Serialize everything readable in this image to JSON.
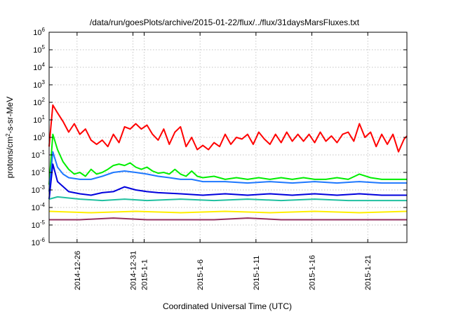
{
  "chart_data": {
    "type": "line",
    "title": "/data/run/goesPlots/archive/2015-01-22/flux/../flux/31daysMarsFluxes.txt",
    "xlabel": "Coordinated Universal Time (UTC)",
    "ylabel": {
      "pre": "protons/cm",
      "sup": "2",
      "post": "-s-sr-MeV"
    },
    "y_scale": "log",
    "ylim": [
      1e-06,
      1000000.0
    ],
    "y_ticks": [
      {
        "value": 1e-06,
        "base": "10",
        "exp": "-6"
      },
      {
        "value": 1e-05,
        "base": "10",
        "exp": "-5"
      },
      {
        "value": 0.0001,
        "base": "10",
        "exp": "-4"
      },
      {
        "value": 0.001,
        "base": "10",
        "exp": "-3"
      },
      {
        "value": 0.01,
        "base": "10",
        "exp": "-2"
      },
      {
        "value": 0.1,
        "base": "10",
        "exp": "-1"
      },
      {
        "value": 1,
        "base": "10",
        "exp": "0"
      },
      {
        "value": 10,
        "base": "10",
        "exp": "1"
      },
      {
        "value": 100,
        "base": "10",
        "exp": "2"
      },
      {
        "value": 1000,
        "base": "10",
        "exp": "3"
      },
      {
        "value": 10000,
        "base": "10",
        "exp": "4"
      },
      {
        "value": 100000,
        "base": "10",
        "exp": "5"
      },
      {
        "value": 1000000,
        "base": "10",
        "exp": "6"
      }
    ],
    "xlim": [
      "2014-12-23T12:00",
      "2015-01-24T12:00"
    ],
    "x_ticks": [
      {
        "value": "2014-12-26T00:00",
        "label": "2014-12-26"
      },
      {
        "value": "2014-12-31T00:00",
        "label": "2014-12-31"
      },
      {
        "value": "2015-01-01T00:00",
        "label": "2015-1-1"
      },
      {
        "value": "2015-01-06T00:00",
        "label": "2015-1-6"
      },
      {
        "value": "2015-01-11T00:00",
        "label": "2015-1-11"
      },
      {
        "value": "2015-01-16T00:00",
        "label": "2015-1-16"
      },
      {
        "value": "2015-01-21T00:00",
        "label": "2015-1-21"
      }
    ],
    "grid": true,
    "series": [
      {
        "color": "#ff0000",
        "points": [
          [
            "2014-12-23T12:00",
            0.3
          ],
          [
            "2014-12-23T20:00",
            70
          ],
          [
            "2014-12-24T06:00",
            25
          ],
          [
            "2014-12-24T18:00",
            8
          ],
          [
            "2014-12-25T06:00",
            2
          ],
          [
            "2014-12-25T18:00",
            6
          ],
          [
            "2014-12-26T06:00",
            1.5
          ],
          [
            "2014-12-26T18:00",
            3
          ],
          [
            "2014-12-27T06:00",
            0.7
          ],
          [
            "2014-12-27T18:00",
            0.4
          ],
          [
            "2014-12-28T06:00",
            0.7
          ],
          [
            "2014-12-28T18:00",
            0.3
          ],
          [
            "2014-12-29T06:00",
            1.5
          ],
          [
            "2014-12-29T18:00",
            0.5
          ],
          [
            "2014-12-30T06:00",
            4
          ],
          [
            "2014-12-30T18:00",
            3
          ],
          [
            "2014-12-31T06:00",
            6
          ],
          [
            "2014-12-31T18:00",
            3
          ],
          [
            "2015-01-01T06:00",
            5
          ],
          [
            "2015-01-01T18:00",
            1.5
          ],
          [
            "2015-01-02T06:00",
            0.7
          ],
          [
            "2015-01-02T18:00",
            3
          ],
          [
            "2015-01-03T06:00",
            0.4
          ],
          [
            "2015-01-03T18:00",
            2
          ],
          [
            "2015-01-04T06:00",
            4
          ],
          [
            "2015-01-04T18:00",
            0.3
          ],
          [
            "2015-01-05T06:00",
            1
          ],
          [
            "2015-01-05T18:00",
            0.2
          ],
          [
            "2015-01-06T06:00",
            0.35
          ],
          [
            "2015-01-06T18:00",
            0.2
          ],
          [
            "2015-01-07T06:00",
            0.5
          ],
          [
            "2015-01-07T18:00",
            0.3
          ],
          [
            "2015-01-08T06:00",
            1.5
          ],
          [
            "2015-01-08T18:00",
            0.4
          ],
          [
            "2015-01-09T06:00",
            1
          ],
          [
            "2015-01-09T18:00",
            0.8
          ],
          [
            "2015-01-10T06:00",
            1.5
          ],
          [
            "2015-01-10T18:00",
            0.4
          ],
          [
            "2015-01-11T06:00",
            2
          ],
          [
            "2015-01-11T18:00",
            0.8
          ],
          [
            "2015-01-12T06:00",
            0.4
          ],
          [
            "2015-01-12T18:00",
            1.5
          ],
          [
            "2015-01-13T06:00",
            0.5
          ],
          [
            "2015-01-13T18:00",
            2
          ],
          [
            "2015-01-14T06:00",
            0.6
          ],
          [
            "2015-01-14T18:00",
            1.5
          ],
          [
            "2015-01-15T06:00",
            0.6
          ],
          [
            "2015-01-15T18:00",
            1.5
          ],
          [
            "2015-01-16T06:00",
            0.5
          ],
          [
            "2015-01-16T18:00",
            2
          ],
          [
            "2015-01-17T06:00",
            0.6
          ],
          [
            "2015-01-17T18:00",
            1.2
          ],
          [
            "2015-01-18T06:00",
            0.5
          ],
          [
            "2015-01-18T18:00",
            1.5
          ],
          [
            "2015-01-19T06:00",
            2
          ],
          [
            "2015-01-19T18:00",
            0.6
          ],
          [
            "2015-01-20T06:00",
            6
          ],
          [
            "2015-01-20T18:00",
            1
          ],
          [
            "2015-01-21T06:00",
            2
          ],
          [
            "2015-01-21T18:00",
            0.3
          ],
          [
            "2015-01-22T06:00",
            1.5
          ],
          [
            "2015-01-22T18:00",
            0.4
          ],
          [
            "2015-01-23T06:00",
            1.5
          ],
          [
            "2015-01-23T18:00",
            0.15
          ],
          [
            "2015-01-24T06:00",
            0.8
          ],
          [
            "2015-01-24T12:00",
            1.2
          ]
        ]
      },
      {
        "color": "#00ee00",
        "points": [
          [
            "2014-12-23T12:00",
            0.002
          ],
          [
            "2014-12-23T20:00",
            1.5
          ],
          [
            "2014-12-24T06:00",
            0.2
          ],
          [
            "2014-12-24T18:00",
            0.04
          ],
          [
            "2014-12-25T06:00",
            0.015
          ],
          [
            "2014-12-25T18:00",
            0.008
          ],
          [
            "2014-12-26T06:00",
            0.01
          ],
          [
            "2014-12-26T18:00",
            0.006
          ],
          [
            "2014-12-27T06:00",
            0.015
          ],
          [
            "2014-12-27T18:00",
            0.008
          ],
          [
            "2014-12-28T06:00",
            0.01
          ],
          [
            "2014-12-28T18:00",
            0.015
          ],
          [
            "2014-12-29T06:00",
            0.025
          ],
          [
            "2014-12-29T18:00",
            0.03
          ],
          [
            "2014-12-30T06:00",
            0.025
          ],
          [
            "2014-12-30T18:00",
            0.035
          ],
          [
            "2014-12-31T06:00",
            0.02
          ],
          [
            "2014-12-31T18:00",
            0.015
          ],
          [
            "2015-01-01T06:00",
            0.02
          ],
          [
            "2015-01-01T18:00",
            0.012
          ],
          [
            "2015-01-02T06:00",
            0.009
          ],
          [
            "2015-01-02T18:00",
            0.01
          ],
          [
            "2015-01-03T06:00",
            0.008
          ],
          [
            "2015-01-03T18:00",
            0.015
          ],
          [
            "2015-01-04T06:00",
            0.008
          ],
          [
            "2015-01-04T18:00",
            0.006
          ],
          [
            "2015-01-05T06:00",
            0.012
          ],
          [
            "2015-01-05T18:00",
            0.006
          ],
          [
            "2015-01-06T06:00",
            0.005
          ],
          [
            "2015-01-07T06:00",
            0.006
          ],
          [
            "2015-01-08T06:00",
            0.004
          ],
          [
            "2015-01-09T06:00",
            0.005
          ],
          [
            "2015-01-10T06:00",
            0.004
          ],
          [
            "2015-01-11T06:00",
            0.005
          ],
          [
            "2015-01-12T06:00",
            0.004
          ],
          [
            "2015-01-13T06:00",
            0.005
          ],
          [
            "2015-01-14T06:00",
            0.004
          ],
          [
            "2015-01-15T06:00",
            0.005
          ],
          [
            "2015-01-16T06:00",
            0.004
          ],
          [
            "2015-01-17T06:00",
            0.004
          ],
          [
            "2015-01-18T06:00",
            0.005
          ],
          [
            "2015-01-19T06:00",
            0.004
          ],
          [
            "2015-01-20T06:00",
            0.008
          ],
          [
            "2015-01-21T06:00",
            0.005
          ],
          [
            "2015-01-22T06:00",
            0.004
          ],
          [
            "2015-01-23T06:00",
            0.004
          ],
          [
            "2015-01-24T12:00",
            0.004
          ]
        ]
      },
      {
        "color": "#1e78ff",
        "points": [
          [
            "2014-12-23T12:00",
            0.0008
          ],
          [
            "2014-12-23T20:00",
            0.15
          ],
          [
            "2014-12-24T06:00",
            0.02
          ],
          [
            "2014-12-24T18:00",
            0.008
          ],
          [
            "2014-12-25T06:00",
            0.005
          ],
          [
            "2014-12-26T06:00",
            0.004
          ],
          [
            "2014-12-27T06:00",
            0.004
          ],
          [
            "2014-12-28T06:00",
            0.006
          ],
          [
            "2014-12-29T06:00",
            0.01
          ],
          [
            "2014-12-30T06:00",
            0.012
          ],
          [
            "2014-12-31T06:00",
            0.01
          ],
          [
            "2015-01-01T06:00",
            0.008
          ],
          [
            "2015-01-02T06:00",
            0.006
          ],
          [
            "2015-01-03T06:00",
            0.005
          ],
          [
            "2015-01-04T06:00",
            0.004
          ],
          [
            "2015-01-05T06:00",
            0.004
          ],
          [
            "2015-01-06T06:00",
            0.003
          ],
          [
            "2015-01-08T06:00",
            0.003
          ],
          [
            "2015-01-10T06:00",
            0.0025
          ],
          [
            "2015-01-12T06:00",
            0.003
          ],
          [
            "2015-01-14T06:00",
            0.0025
          ],
          [
            "2015-01-16T06:00",
            0.003
          ],
          [
            "2015-01-18T06:00",
            0.0025
          ],
          [
            "2015-01-20T06:00",
            0.003
          ],
          [
            "2015-01-22T06:00",
            0.0025
          ],
          [
            "2015-01-24T12:00",
            0.0025
          ]
        ]
      },
      {
        "color": "#0000dd",
        "points": [
          [
            "2014-12-23T12:00",
            0.0003
          ],
          [
            "2014-12-23T20:00",
            0.03
          ],
          [
            "2014-12-24T06:00",
            0.003
          ],
          [
            "2014-12-25T06:00",
            0.0008
          ],
          [
            "2014-12-26T06:00",
            0.0006
          ],
          [
            "2014-12-27T06:00",
            0.0005
          ],
          [
            "2014-12-28T06:00",
            0.0007
          ],
          [
            "2014-12-29T06:00",
            0.0008
          ],
          [
            "2014-12-30T06:00",
            0.0015
          ],
          [
            "2014-12-31T06:00",
            0.001
          ],
          [
            "2015-01-01T06:00",
            0.0008
          ],
          [
            "2015-01-02T06:00",
            0.0007
          ],
          [
            "2015-01-04T06:00",
            0.0006
          ],
          [
            "2015-01-06T06:00",
            0.0005
          ],
          [
            "2015-01-08T06:00",
            0.0006
          ],
          [
            "2015-01-10T06:00",
            0.0005
          ],
          [
            "2015-01-12T06:00",
            0.0006
          ],
          [
            "2015-01-14T06:00",
            0.0005
          ],
          [
            "2015-01-16T06:00",
            0.0006
          ],
          [
            "2015-01-18T06:00",
            0.0005
          ],
          [
            "2015-01-20T06:00",
            0.0006
          ],
          [
            "2015-01-22T06:00",
            0.0005
          ],
          [
            "2015-01-24T12:00",
            0.0005
          ]
        ]
      },
      {
        "color": "#20c0a0",
        "points": [
          [
            "2014-12-23T12:00",
            0.0003
          ],
          [
            "2014-12-24T06:00",
            0.0004
          ],
          [
            "2014-12-26T06:00",
            0.0003
          ],
          [
            "2014-12-28T06:00",
            0.00025
          ],
          [
            "2014-12-30T06:00",
            0.0003
          ],
          [
            "2015-01-01T06:00",
            0.00025
          ],
          [
            "2015-01-04T06:00",
            0.0003
          ],
          [
            "2015-01-07T06:00",
            0.00025
          ],
          [
            "2015-01-10T06:00",
            0.0003
          ],
          [
            "2015-01-13T06:00",
            0.00025
          ],
          [
            "2015-01-16T06:00",
            0.0003
          ],
          [
            "2015-01-19T06:00",
            0.00025
          ],
          [
            "2015-01-22T06:00",
            0.00025
          ],
          [
            "2015-01-24T12:00",
            0.00025
          ]
        ]
      },
      {
        "color": "#ffee00",
        "points": [
          [
            "2014-12-23T12:00",
            6e-05
          ],
          [
            "2014-12-27T06:00",
            5e-05
          ],
          [
            "2014-12-31T06:00",
            6e-05
          ],
          [
            "2015-01-04T06:00",
            5e-05
          ],
          [
            "2015-01-08T06:00",
            6e-05
          ],
          [
            "2015-01-12T06:00",
            5e-05
          ],
          [
            "2015-01-16T06:00",
            6e-05
          ],
          [
            "2015-01-20T06:00",
            5e-05
          ],
          [
            "2015-01-24T12:00",
            6e-05
          ]
        ]
      },
      {
        "color": "#943060",
        "points": [
          [
            "2014-12-23T12:00",
            2e-05
          ],
          [
            "2014-12-26T06:00",
            2e-05
          ],
          [
            "2014-12-29T06:00",
            2.5e-05
          ],
          [
            "2015-01-01T06:00",
            2e-05
          ],
          [
            "2015-01-04T06:00",
            2e-05
          ],
          [
            "2015-01-07T06:00",
            2e-05
          ],
          [
            "2015-01-10T06:00",
            2.5e-05
          ],
          [
            "2015-01-13T06:00",
            2e-05
          ],
          [
            "2015-01-16T06:00",
            2e-05
          ],
          [
            "2015-01-19T06:00",
            2e-05
          ],
          [
            "2015-01-22T06:00",
            2e-05
          ],
          [
            "2015-01-24T12:00",
            2e-05
          ]
        ]
      }
    ]
  }
}
